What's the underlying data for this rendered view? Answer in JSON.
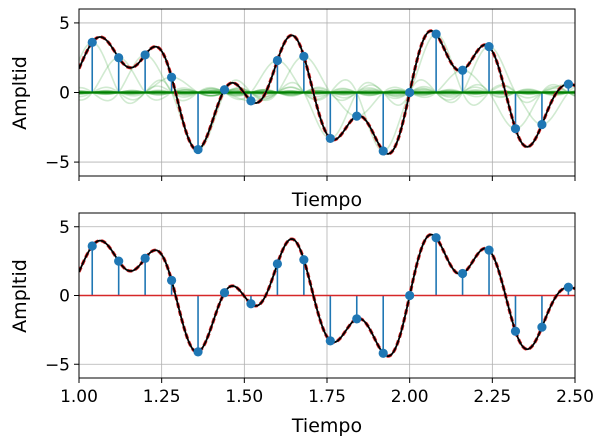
{
  "chart_data": [
    {
      "type": "stem",
      "panel": "top",
      "xlabel": "Tiempo",
      "ylabel": "Ampltid",
      "xlim": [
        1.0,
        2.5
      ],
      "ylim": [
        -6,
        6
      ],
      "yticks": [
        "5",
        "0",
        "−5"
      ],
      "ytick_values": [
        5,
        0,
        -5
      ],
      "xtick_values": [
        1.0,
        1.25,
        1.5,
        1.75,
        2.0,
        2.25,
        2.5
      ],
      "xtick_labels_visible": false,
      "grid": true,
      "samples": {
        "x": [
          1.04,
          1.12,
          1.2,
          1.28,
          1.36,
          1.44,
          1.52,
          1.6,
          1.68,
          1.76,
          1.84,
          1.92,
          2.0,
          2.08,
          2.16,
          2.24,
          2.32,
          2.4,
          2.48
        ],
        "y": [
          3.6,
          2.5,
          2.7,
          1.1,
          -4.1,
          0.2,
          -0.6,
          2.3,
          2.6,
          -3.3,
          -1.7,
          -4.2,
          0.0,
          4.2,
          1.6,
          3.3,
          -2.6,
          -2.3,
          0.6
        ]
      },
      "overlays": [
        "reconstructed-signal",
        "original-signal",
        "sinc-components"
      ],
      "colors": {
        "stem": "#1f77b4",
        "signal": "#000000",
        "original": "#d62728",
        "components": "#2ca02c",
        "baseline": "#008000"
      }
    },
    {
      "type": "stem",
      "panel": "bottom",
      "xlabel": "Tiempo",
      "ylabel": "Ampltid",
      "xlim": [
        1.0,
        2.5
      ],
      "ylim": [
        -6,
        6
      ],
      "yticks": [
        "5",
        "0",
        "−5"
      ],
      "ytick_values": [
        5,
        0,
        -5
      ],
      "xticks": [
        "1.00",
        "1.25",
        "1.50",
        "1.75",
        "2.00",
        "2.25",
        "2.50"
      ],
      "xtick_values": [
        1.0,
        1.25,
        1.5,
        1.75,
        2.0,
        2.25,
        2.5
      ],
      "grid": true,
      "samples": {
        "x": [
          1.04,
          1.12,
          1.2,
          1.28,
          1.36,
          1.44,
          1.52,
          1.6,
          1.68,
          1.76,
          1.84,
          1.92,
          2.0,
          2.08,
          2.16,
          2.24,
          2.32,
          2.4,
          2.48
        ],
        "y": [
          3.6,
          2.5,
          2.7,
          1.1,
          -4.1,
          0.2,
          -0.6,
          2.3,
          2.6,
          -3.3,
          -1.7,
          -4.2,
          0.0,
          4.2,
          1.6,
          3.3,
          -2.6,
          -2.3,
          0.6
        ]
      },
      "overlays": [
        "reconstructed-signal",
        "original-signal"
      ],
      "colors": {
        "stem": "#1f77b4",
        "signal": "#000000",
        "original": "#d62728",
        "baseline": "#d62728"
      }
    }
  ]
}
